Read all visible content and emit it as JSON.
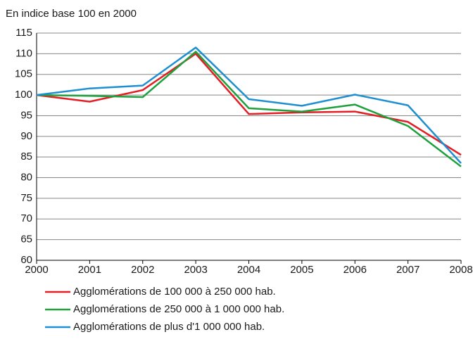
{
  "chart_data": {
    "type": "line",
    "axis_title": "En indice base 100 en 2000",
    "x": [
      2000,
      2001,
      2002,
      2003,
      2004,
      2005,
      2006,
      2007,
      2008
    ],
    "xlim": [
      2000,
      2008
    ],
    "xticks": [
      2000,
      2001,
      2002,
      2003,
      2004,
      2005,
      2006,
      2007,
      2008
    ],
    "ylim": [
      60,
      115
    ],
    "yticks": [
      60,
      65,
      70,
      75,
      80,
      85,
      90,
      95,
      100,
      105,
      110,
      115
    ],
    "grid": true,
    "legend": "bottom",
    "series": [
      {
        "name": "Agglomérations de 100 000 à 250 000 hab.",
        "color": "#e31e24",
        "values": [
          100,
          98.4,
          101.2,
          110,
          95.4,
          95.8,
          96,
          93.5,
          85.5
        ]
      },
      {
        "name": "Agglomérations de 250 000 à 1 000 000 hab.",
        "color": "#1ea03c",
        "values": [
          100,
          99.8,
          99.5,
          110.5,
          96.8,
          96,
          97.7,
          92.5,
          82.7
        ]
      },
      {
        "name": "Agglomérations de plus d'1 000 000 hab.",
        "color": "#1e8fd0",
        "values": [
          100,
          101.6,
          102.3,
          111.5,
          99,
          97.4,
          100.1,
          97.5,
          83.5
        ]
      }
    ]
  }
}
